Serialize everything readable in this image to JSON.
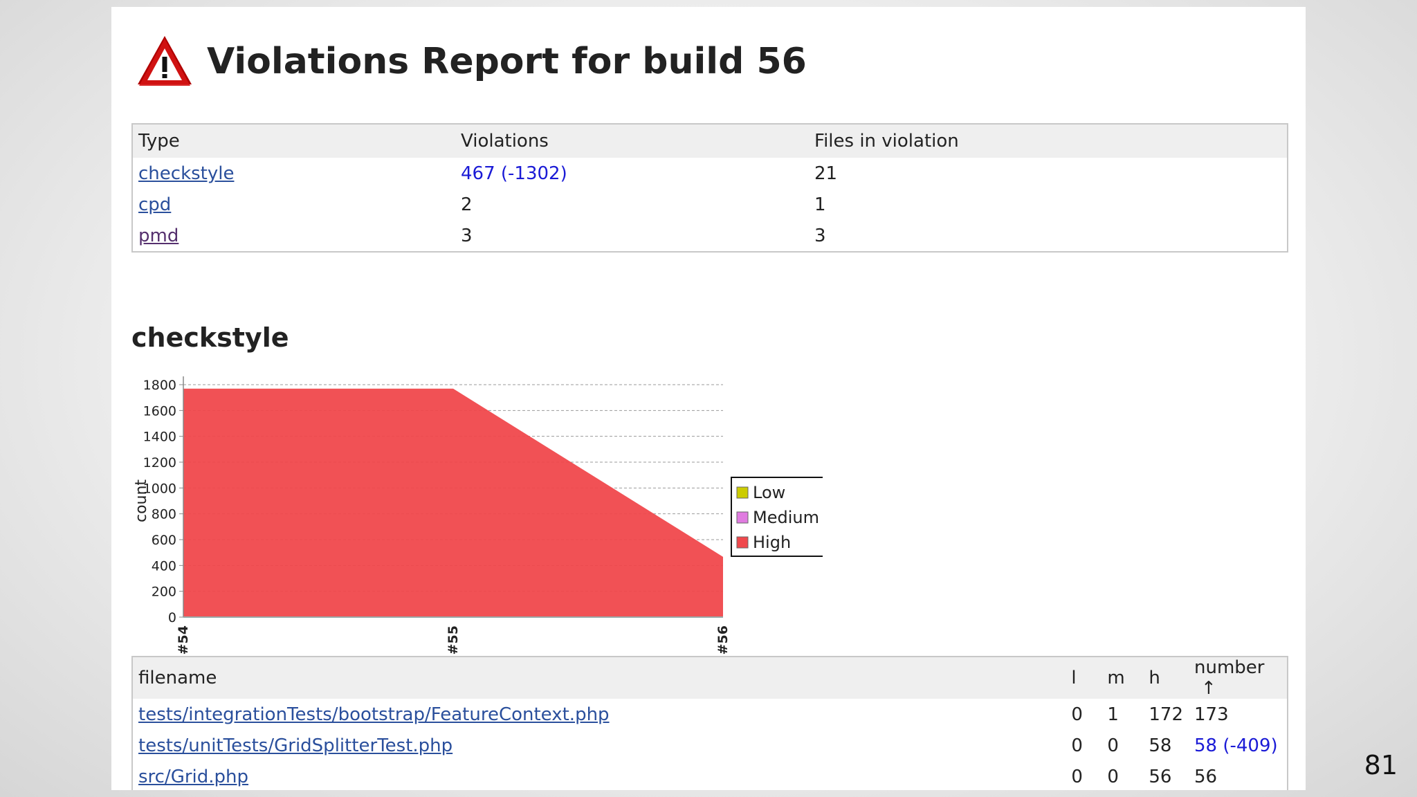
{
  "title": "Violations Report for build 56",
  "slide_number": "81",
  "summary_table": {
    "headers": [
      "Type",
      "Violations",
      "Files in violation"
    ],
    "rows": [
      {
        "type": "checkstyle",
        "violations": "467 (-1302)",
        "files": "21"
      },
      {
        "type": "cpd",
        "violations": "2",
        "files": "1"
      },
      {
        "type": "pmd",
        "violations": "3",
        "files": "3"
      }
    ]
  },
  "section_title": "checkstyle",
  "chart_data": {
    "type": "area",
    "x": [
      "#54",
      "#55",
      "#56"
    ],
    "series": [
      {
        "name": "Low",
        "color": "#cccc00",
        "values": [
          0,
          0,
          0
        ]
      },
      {
        "name": "Medium",
        "color": "#e07be0",
        "values": [
          0,
          0,
          0
        ]
      },
      {
        "name": "High",
        "color": "#f0484c",
        "values": [
          1769,
          1769,
          467
        ]
      }
    ],
    "ylabel": "count",
    "ylim": [
      0,
      1800
    ],
    "yticks": [
      0,
      200,
      400,
      600,
      800,
      1000,
      1200,
      1400,
      1600,
      1800
    ],
    "grid": true,
    "legend": "right"
  },
  "files_table": {
    "headers": {
      "filename": "filename",
      "l": "l",
      "m": "m",
      "h": "h",
      "number": "number",
      "sort_arrow": "↑"
    },
    "rows": [
      {
        "filename": "tests/integrationTests/bootstrap/FeatureContext.php",
        "l": "0",
        "m": "1",
        "h": "172",
        "number": "173"
      },
      {
        "filename": "tests/unitTests/GridSplitterTest.php",
        "l": "0",
        "m": "0",
        "h": "58",
        "number": "58 (-409)"
      },
      {
        "filename": "src/Grid.php",
        "l": "0",
        "m": "0",
        "h": "56",
        "number": "56"
      }
    ]
  },
  "colors": {
    "link": "#2a4f9c",
    "visited_link": "#55306e",
    "delta": "#1a1ad6",
    "high": "#f0484c"
  }
}
